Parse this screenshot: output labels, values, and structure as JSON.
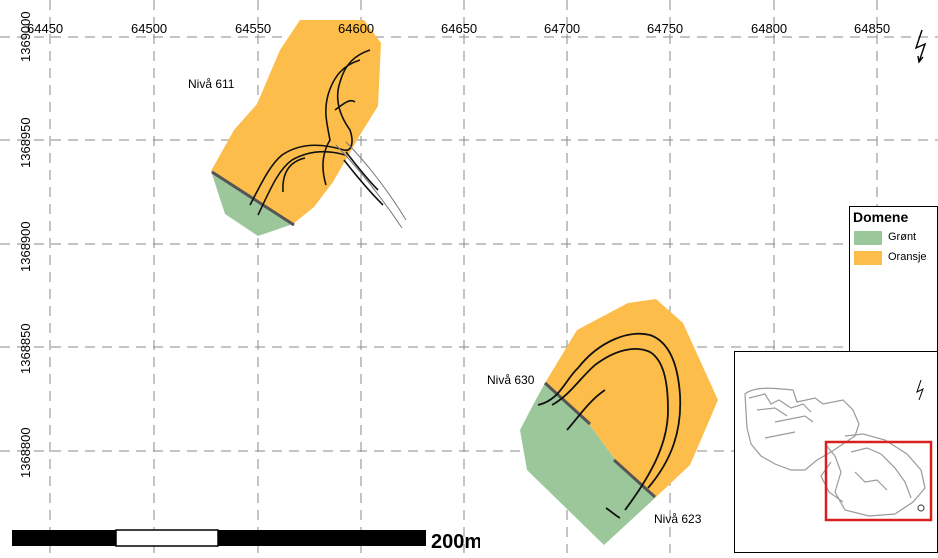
{
  "map": {
    "x_ticks": [
      "64450",
      "64500",
      "64550",
      "64600",
      "64650",
      "64700",
      "64750",
      "64800",
      "64850"
    ],
    "y_ticks": [
      "1369000",
      "1368950",
      "1368900",
      "1368850",
      "1368800"
    ],
    "labels": {
      "level_611": "Nivå 611",
      "level_630": "Nivå 630",
      "level_623": "Nivå 623"
    },
    "colors": {
      "green": "#9cc79a",
      "orange": "#fdbd4a",
      "grid": "#8a8a8a"
    },
    "north_arrow": "north-arrow-icon"
  },
  "legend": {
    "title": "Domene",
    "items": [
      {
        "label": "Grønt",
        "color": "#9cc79a"
      },
      {
        "label": "Oransje",
        "color": "#fdbd4a"
      }
    ]
  },
  "scalebar": {
    "label": "200m"
  },
  "inset": {
    "frame_color": "#d9201f"
  }
}
